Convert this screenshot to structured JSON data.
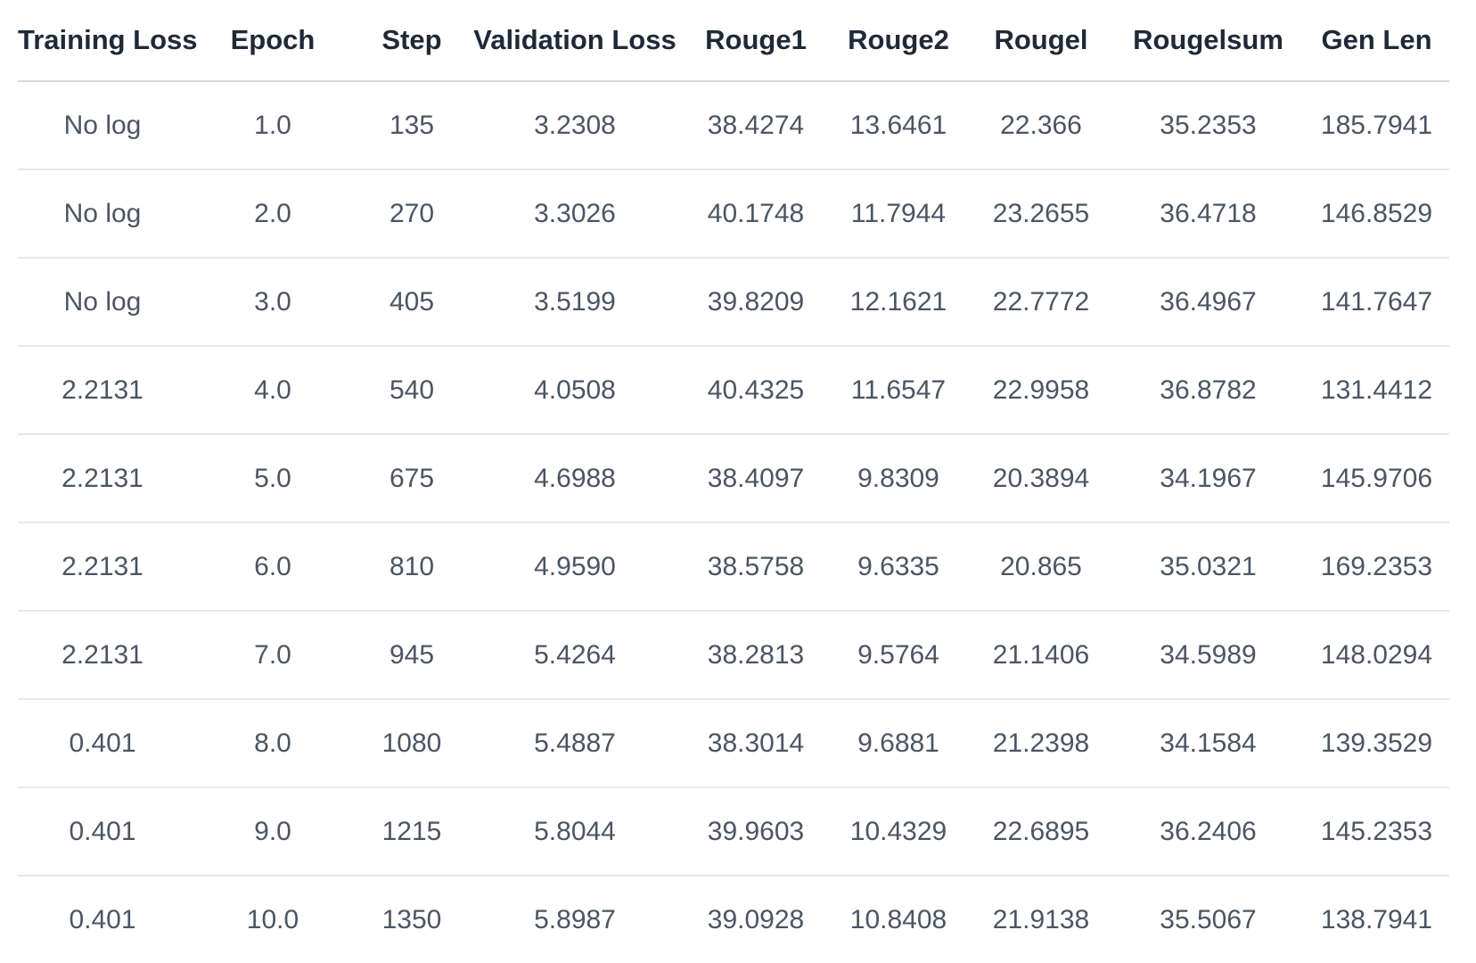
{
  "table": {
    "columns": [
      "Training Loss",
      "Epoch",
      "Step",
      "Validation Loss",
      "Rouge1",
      "Rouge2",
      "Rougel",
      "Rougelsum",
      "Gen Len"
    ],
    "rows": [
      [
        "No log",
        "1.0",
        "135",
        "3.2308",
        "38.4274",
        "13.6461",
        "22.366",
        "35.2353",
        "185.7941"
      ],
      [
        "No log",
        "2.0",
        "270",
        "3.3026",
        "40.1748",
        "11.7944",
        "23.2655",
        "36.4718",
        "146.8529"
      ],
      [
        "No log",
        "3.0",
        "405",
        "3.5199",
        "39.8209",
        "12.1621",
        "22.7772",
        "36.4967",
        "141.7647"
      ],
      [
        "2.2131",
        "4.0",
        "540",
        "4.0508",
        "40.4325",
        "11.6547",
        "22.9958",
        "36.8782",
        "131.4412"
      ],
      [
        "2.2131",
        "5.0",
        "675",
        "4.6988",
        "38.4097",
        "9.8309",
        "20.3894",
        "34.1967",
        "145.9706"
      ],
      [
        "2.2131",
        "6.0",
        "810",
        "4.9590",
        "38.5758",
        "9.6335",
        "20.865",
        "35.0321",
        "169.2353"
      ],
      [
        "2.2131",
        "7.0",
        "945",
        "5.4264",
        "38.2813",
        "9.5764",
        "21.1406",
        "34.5989",
        "148.0294"
      ],
      [
        "0.401",
        "8.0",
        "1080",
        "5.4887",
        "38.3014",
        "9.6881",
        "21.2398",
        "34.1584",
        "139.3529"
      ],
      [
        "0.401",
        "9.0",
        "1215",
        "5.8044",
        "39.9603",
        "10.4329",
        "22.6895",
        "36.2406",
        "145.2353"
      ],
      [
        "0.401",
        "10.0",
        "1350",
        "5.8987",
        "39.0928",
        "10.8408",
        "21.9138",
        "35.5067",
        "138.7941"
      ]
    ]
  }
}
